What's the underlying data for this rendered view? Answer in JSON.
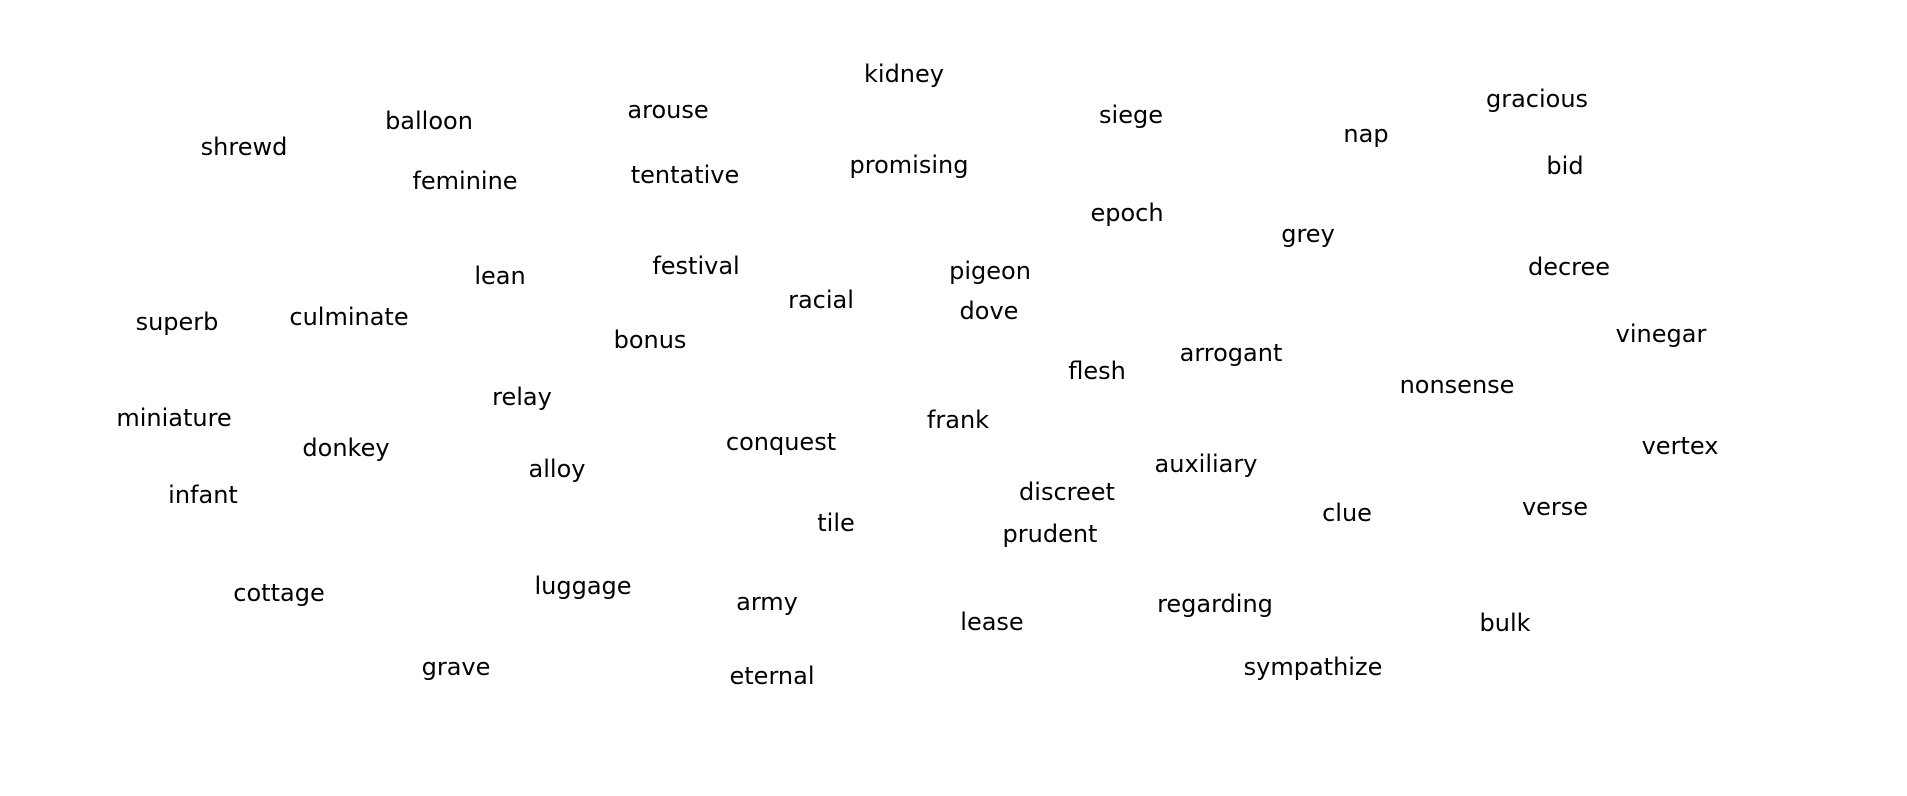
{
  "words": [
    "kidney",
    "gracious",
    "arouse",
    "siege",
    "balloon",
    "nap",
    "shrewd",
    "bid",
    "tentative",
    "promising",
    "feminine",
    "epoch",
    "grey",
    "festival",
    "decree",
    "pigeon",
    "lean",
    "racial",
    "dove",
    "superb",
    "culminate",
    "vinegar",
    "bonus",
    "arrogant",
    "flesh",
    "nonsense",
    "relay",
    "frank",
    "miniature",
    "conquest",
    "donkey",
    "vertex",
    "auxiliary",
    "alloy",
    "discreet",
    "infant",
    "verse",
    "clue",
    "tile",
    "prudent",
    "luggage",
    "cottage",
    "army",
    "regarding",
    "lease",
    "bulk",
    "grave",
    "sympathize",
    "eternal"
  ],
  "colors": {
    "background": "#ffffff",
    "text": "#000000"
  }
}
